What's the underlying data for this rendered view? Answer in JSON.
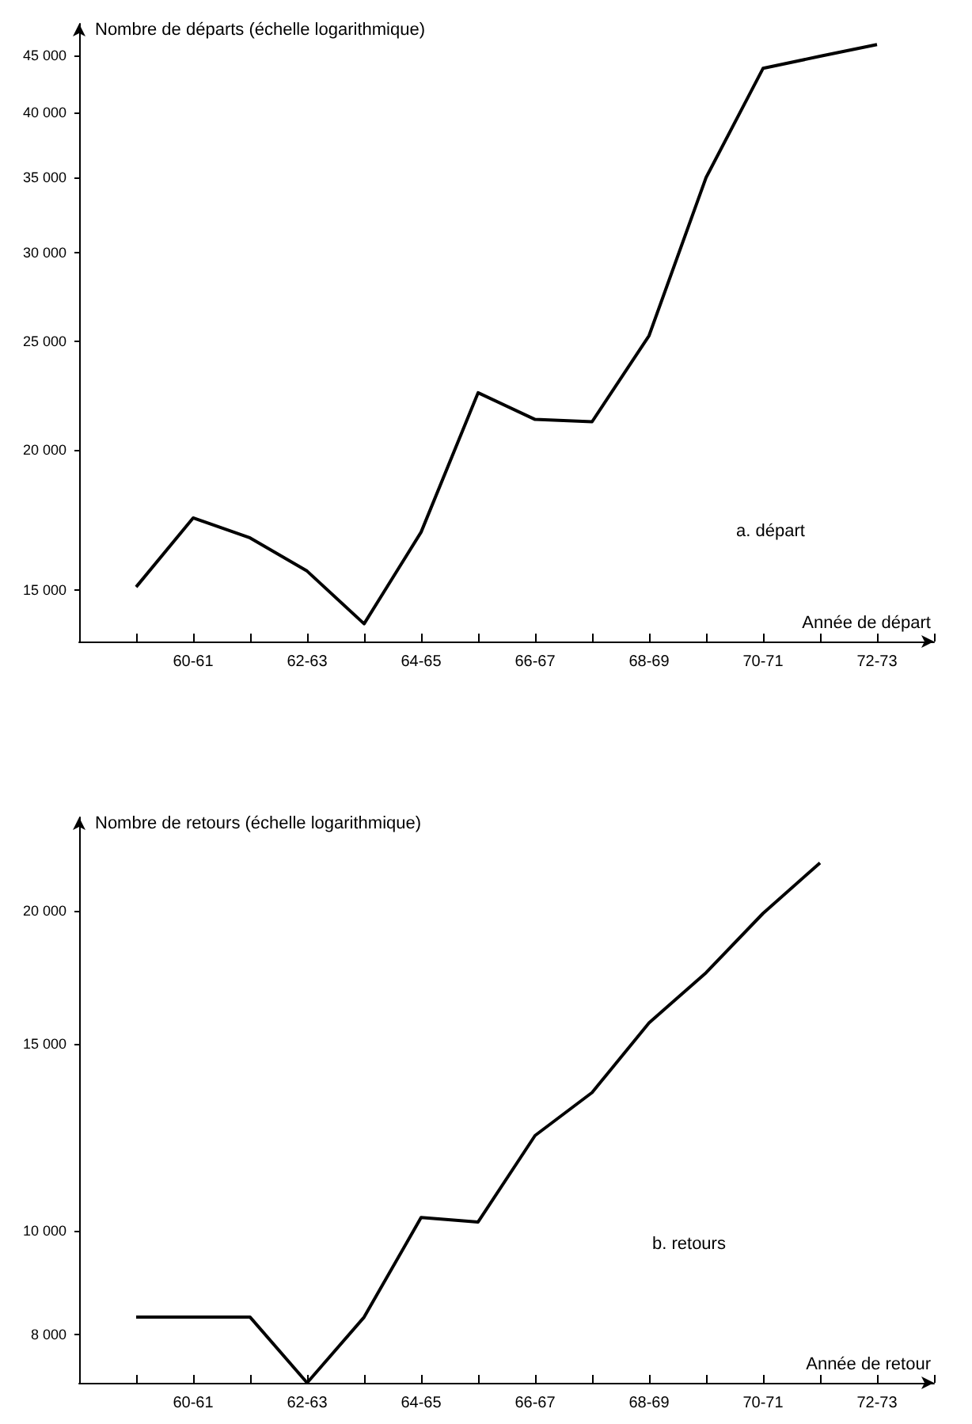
{
  "chart_data": [
    {
      "type": "line",
      "xlabel": "Année de départ",
      "ylabel": "Nombre de départs (échelle logarithmique)",
      "annotations": [
        "a. départ"
      ],
      "log": "y",
      "color": "#000000",
      "categories": [
        null,
        "60-61",
        null,
        "62-63",
        null,
        "64-65",
        null,
        "66-67",
        null,
        "68-69",
        null,
        "70-71",
        null,
        "72-73"
      ],
      "values": [
        15100,
        17400,
        16700,
        15600,
        14000,
        16900,
        22500,
        21300,
        21200,
        25300,
        35000,
        43800,
        44900,
        46000
      ],
      "ylim": [
        13500,
        48000
      ],
      "yticks": [
        {
          "value": 15000,
          "label": "15 000"
        },
        {
          "value": 20000,
          "label": "20 000"
        },
        {
          "value": 25000,
          "label": "25 000"
        },
        {
          "value": 30000,
          "label": "30 000"
        },
        {
          "value": 35000,
          "label": "35 000"
        },
        {
          "value": 40000,
          "label": "40 000"
        },
        {
          "value": 45000,
          "label": "45 000"
        }
      ]
    },
    {
      "type": "line",
      "xlabel": "Année de retour",
      "ylabel": "Nombre de retours (échelle logarithmique)",
      "annotations": [
        "b. retours"
      ],
      "log": "y",
      "color": "#000000",
      "categories": [
        null,
        "60-61",
        null,
        "62-63",
        null,
        "64-65",
        null,
        "66-67",
        null,
        "68-69",
        null,
        "70-71",
        null,
        "72-73"
      ],
      "values": [
        8300,
        8300,
        8300,
        7200,
        8300,
        10300,
        10200,
        12300,
        13500,
        15700,
        17500,
        19900,
        22200,
        null
      ],
      "ylim": [
        7200,
        24500
      ],
      "yticks": [
        {
          "value": 8000,
          "label": "8 000"
        },
        {
          "value": 10000,
          "label": "10 000"
        },
        {
          "value": 15000,
          "label": "15 000"
        },
        {
          "value": 20000,
          "label": "20 000"
        }
      ]
    }
  ]
}
